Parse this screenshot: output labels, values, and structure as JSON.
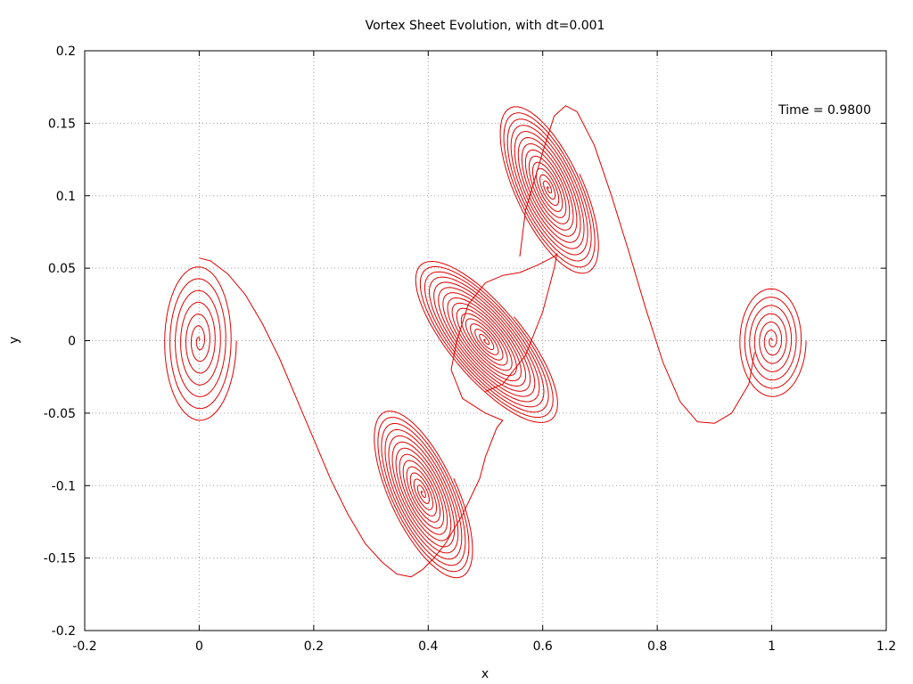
{
  "chart_data": {
    "type": "line",
    "title": "Vortex Sheet Evolution, with dt=0.001",
    "xlabel": "x",
    "ylabel": "y",
    "xlim": [
      -0.2,
      1.2
    ],
    "ylim": [
      -0.2,
      0.2
    ],
    "x_ticks": [
      -0.2,
      0,
      0.2,
      0.4,
      0.6,
      0.8,
      1,
      1.2
    ],
    "x_tick_labels": [
      "-0.2",
      "0",
      "0.2",
      "0.4",
      "0.6",
      "0.8",
      "1",
      "1.2"
    ],
    "y_ticks": [
      -0.2,
      -0.15,
      -0.1,
      -0.05,
      0,
      0.05,
      0.1,
      0.15,
      0.2
    ],
    "y_tick_labels": [
      "-0.2",
      "-0.15",
      "-0.1",
      "-0.05",
      "0",
      "0.05",
      "0.1",
      "0.15",
      "0.2"
    ],
    "grid": true,
    "annotation": "Time = 0.9800",
    "series_color": "#e00000",
    "sheet": {
      "backbone": [
        [
          0.0,
          0.057
        ],
        [
          0.02,
          0.055
        ],
        [
          0.05,
          0.046
        ],
        [
          0.08,
          0.032
        ],
        [
          0.11,
          0.012
        ],
        [
          0.14,
          -0.012
        ],
        [
          0.17,
          -0.04
        ],
        [
          0.2,
          -0.068
        ],
        [
          0.23,
          -0.096
        ],
        [
          0.26,
          -0.12
        ],
        [
          0.29,
          -0.14
        ],
        [
          0.32,
          -0.153
        ],
        [
          0.345,
          -0.161
        ],
        [
          0.37,
          -0.163
        ],
        [
          0.39,
          -0.158
        ],
        [
          0.41,
          -0.15
        ],
        [
          0.43,
          -0.14
        ]
      ],
      "bridge_lower": [
        [
          0.43,
          -0.14
        ],
        [
          0.46,
          -0.12
        ],
        [
          0.49,
          -0.095
        ],
        [
          0.5,
          -0.08
        ],
        [
          0.52,
          -0.06
        ],
        [
          0.53,
          -0.055
        ],
        [
          0.5,
          -0.05
        ],
        [
          0.46,
          -0.04
        ],
        [
          0.44,
          -0.02
        ],
        [
          0.45,
          0.0
        ],
        [
          0.47,
          0.025
        ],
        [
          0.5,
          0.04
        ],
        [
          0.53,
          0.045
        ],
        [
          0.56,
          0.047
        ]
      ],
      "bridge_upper": [
        [
          0.56,
          0.047
        ],
        [
          0.59,
          0.052
        ],
        [
          0.62,
          0.058
        ],
        [
          0.625,
          0.06
        ],
        [
          0.62,
          0.05
        ],
        [
          0.6,
          0.02
        ],
        [
          0.57,
          -0.01
        ],
        [
          0.53,
          -0.03
        ],
        [
          0.5,
          -0.035
        ]
      ],
      "backbone_right": [
        [
          0.56,
          0.058
        ],
        [
          0.57,
          0.09
        ],
        [
          0.6,
          0.13
        ],
        [
          0.62,
          0.155
        ],
        [
          0.64,
          0.162
        ],
        [
          0.66,
          0.158
        ],
        [
          0.69,
          0.135
        ],
        [
          0.72,
          0.1
        ],
        [
          0.75,
          0.062
        ],
        [
          0.78,
          0.022
        ],
        [
          0.81,
          -0.015
        ],
        [
          0.84,
          -0.042
        ],
        [
          0.87,
          -0.056
        ],
        [
          0.9,
          -0.057
        ],
        [
          0.93,
          -0.05
        ],
        [
          0.96,
          -0.03
        ],
        [
          0.97,
          -0.008
        ]
      ],
      "vortices": [
        {
          "cx": 0.0,
          "cy": 0.0,
          "rx": 0.065,
          "ry": 0.057,
          "tilt": 0,
          "turns": 7
        },
        {
          "cx": 0.39,
          "cy": -0.105,
          "rx": 0.06,
          "ry": 0.065,
          "tilt": -25,
          "turns": 14
        },
        {
          "cx": 0.5,
          "cy": 0.0,
          "rx": 0.065,
          "ry": 0.072,
          "tilt": -40,
          "turns": 16
        },
        {
          "cx": 0.61,
          "cy": 0.105,
          "rx": 0.06,
          "ry": 0.065,
          "tilt": -25,
          "turns": 14
        },
        {
          "cx": 1.0,
          "cy": 0.0,
          "rx": 0.06,
          "ry": 0.04,
          "tilt": 0,
          "turns": 7
        }
      ]
    }
  }
}
